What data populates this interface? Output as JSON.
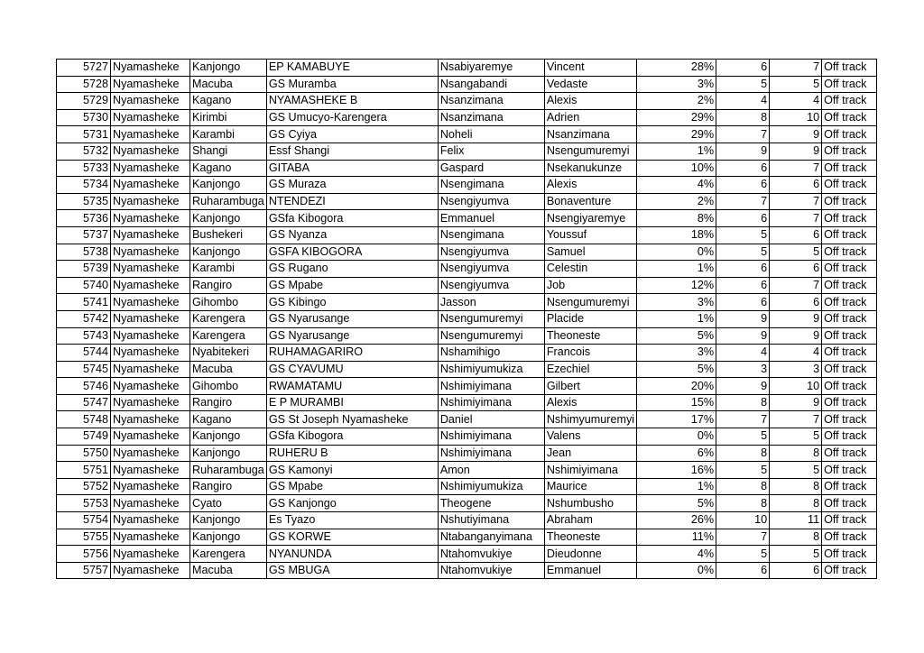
{
  "rows": [
    [
      "5727",
      "Nyamasheke",
      "Kanjongo",
      "EP KAMABUYE",
      "Nsabiyaremye",
      "Vincent",
      "28%",
      "6",
      "7",
      "Off track"
    ],
    [
      "5728",
      "Nyamasheke",
      "Macuba",
      "GS Muramba",
      "Nsangabandi",
      "Vedaste",
      "3%",
      "5",
      "5",
      "Off track"
    ],
    [
      "5729",
      "Nyamasheke",
      "Kagano",
      "NYAMASHEKE B",
      "Nsanzimana",
      "Alexis",
      "2%",
      "4",
      "4",
      "Off track"
    ],
    [
      "5730",
      "Nyamasheke",
      "Kirimbi",
      "GS Umucyo-Karengera",
      "Nsanzimana",
      "Adrien",
      "29%",
      "8",
      "10",
      "Off track"
    ],
    [
      "5731",
      "Nyamasheke",
      "Karambi",
      "GS Cyiya",
      "Noheli",
      "Nsanzimana",
      "29%",
      "7",
      "9",
      "Off track"
    ],
    [
      "5732",
      "Nyamasheke",
      "Shangi",
      "Essf Shangi",
      "Felix",
      "Nsengumuremyi",
      "1%",
      "9",
      "9",
      "Off track"
    ],
    [
      "5733",
      "Nyamasheke",
      "Kagano",
      "GITABA",
      "Gaspard",
      "Nsekanukunze",
      "10%",
      "6",
      "7",
      "Off track"
    ],
    [
      "5734",
      "Nyamasheke",
      "Kanjongo",
      "GS Muraza",
      "Nsengimana",
      "Alexis",
      "4%",
      "6",
      "6",
      "Off track"
    ],
    [
      "5735",
      "Nyamasheke",
      "Ruharambuga",
      "NTENDEZI",
      "Nsengiyumva",
      "Bonaventure",
      "2%",
      "7",
      "7",
      "Off track"
    ],
    [
      "5736",
      "Nyamasheke",
      "Kanjongo",
      "GSfa Kibogora",
      "Emmanuel",
      "Nsengiyaremye",
      "8%",
      "6",
      "7",
      "Off track"
    ],
    [
      "5737",
      "Nyamasheke",
      "Bushekeri",
      "GS Nyanza",
      "Nsengimana",
      "Youssuf",
      "18%",
      "5",
      "6",
      "Off track"
    ],
    [
      "5738",
      "Nyamasheke",
      "Kanjongo",
      "GSFA KIBOGORA",
      "Nsengiyumva",
      "Samuel",
      "0%",
      "5",
      "5",
      "Off track"
    ],
    [
      "5739",
      "Nyamasheke",
      "Karambi",
      "GS Rugano",
      "Nsengiyumva",
      "Celestin",
      "1%",
      "6",
      "6",
      "Off track"
    ],
    [
      "5740",
      "Nyamasheke",
      "Rangiro",
      "GS Mpabe",
      "Nsengiyumva",
      "Job",
      "12%",
      "6",
      "7",
      "Off track"
    ],
    [
      "5741",
      "Nyamasheke",
      "Gihombo",
      "GS Kibingo",
      "Jasson",
      "Nsengumuremyi",
      "3%",
      "6",
      "6",
      "Off track"
    ],
    [
      "5742",
      "Nyamasheke",
      "Karengera",
      "GS Nyarusange",
      "Nsengumuremyi",
      "Placide",
      "1%",
      "9",
      "9",
      "Off track"
    ],
    [
      "5743",
      "Nyamasheke",
      "Karengera",
      "GS Nyarusange",
      "Nsengumuremyi",
      "Theoneste",
      "5%",
      "9",
      "9",
      "Off track"
    ],
    [
      "5744",
      "Nyamasheke",
      "Nyabitekeri",
      "RUHAMAGARIRO",
      "Nshamihigo",
      "Francois",
      "3%",
      "4",
      "4",
      "Off track"
    ],
    [
      "5745",
      "Nyamasheke",
      "Macuba",
      "GS CYAVUMU",
      "Nshimiyumukiza",
      "Ezechiel",
      "5%",
      "3",
      "3",
      "Off track"
    ],
    [
      "5746",
      "Nyamasheke",
      "Gihombo",
      "RWAMATAMU",
      "Nshimiyimana",
      "Gilbert",
      "20%",
      "9",
      "10",
      "Off track"
    ],
    [
      "5747",
      "Nyamasheke",
      "Rangiro",
      "E P MURAMBI",
      "Nshimiyimana",
      "Alexis",
      "15%",
      "8",
      "9",
      "Off track"
    ],
    [
      "5748",
      "Nyamasheke",
      "Kagano",
      "GS St Joseph Nyamasheke",
      "Daniel",
      "Nshimyumuremyi",
      "17%",
      "7",
      "7",
      "Off track"
    ],
    [
      "5749",
      "Nyamasheke",
      "Kanjongo",
      "GSfa Kibogora",
      "Nshimiyimana",
      "Valens",
      "0%",
      "5",
      "5",
      "Off track"
    ],
    [
      "5750",
      "Nyamasheke",
      "Kanjongo",
      "RUHERU B",
      "Nshimiyimana",
      "Jean",
      "6%",
      "8",
      "8",
      "Off track"
    ],
    [
      "5751",
      "Nyamasheke",
      "Ruharambuga",
      "GS Kamonyi",
      "Amon",
      "Nshimiyimana",
      "16%",
      "5",
      "5",
      "Off track"
    ],
    [
      "5752",
      "Nyamasheke",
      "Rangiro",
      "GS Mpabe",
      "Nshimiyumukiza",
      "Maurice",
      "1%",
      "8",
      "8",
      "Off track"
    ],
    [
      "5753",
      "Nyamasheke",
      "Cyato",
      "GS Kanjongo",
      "Theogene",
      "Nshumbusho",
      "5%",
      "8",
      "8",
      "Off track"
    ],
    [
      "5754",
      "Nyamasheke",
      "Kanjongo",
      "Es Tyazo",
      "Nshutiyimana",
      "Abraham",
      "26%",
      "10",
      "11",
      "Off track"
    ],
    [
      "5755",
      "Nyamasheke",
      "Kanjongo",
      "GS KORWE",
      "Ntabanganyimana",
      "Theoneste",
      "11%",
      "7",
      "8",
      "Off track"
    ],
    [
      "5756",
      "Nyamasheke",
      "Karengera",
      "NYANUNDA",
      "Ntahomvukiye",
      "Dieudonne",
      "4%",
      "5",
      "5",
      "Off track"
    ],
    [
      "5757",
      "Nyamasheke",
      "Macuba",
      "GS MBUGA",
      "Ntahomvukiye",
      "Emmanuel",
      "0%",
      "6",
      "6",
      "Off track"
    ]
  ]
}
